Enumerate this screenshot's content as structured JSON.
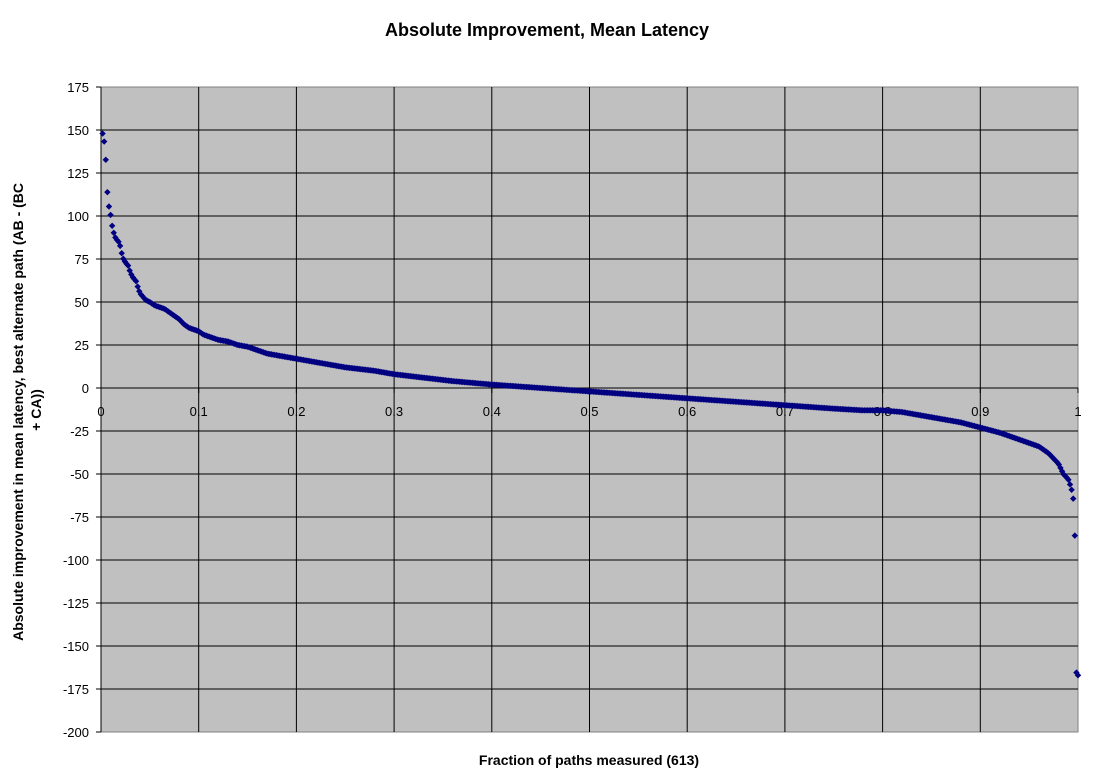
{
  "chart_data": {
    "type": "scatter",
    "title": "Absolute Improvement, Mean Latency",
    "xlabel": "Fraction of paths measured (613)",
    "ylabel_lines": [
      "Absolute improvement in mean latency, best alternate path (AB - (BC",
      "+ CA))"
    ],
    "xlim": [
      0,
      1
    ],
    "ylim": [
      -200,
      175
    ],
    "x_ticks": [
      "0",
      "0.1",
      "0.2",
      "0.3",
      "0.4",
      "0.5",
      "0.6",
      "0.7",
      "0.8",
      "0.9",
      "1"
    ],
    "x_tick_values": [
      0,
      0.1,
      0.2,
      0.3,
      0.4,
      0.5,
      0.6,
      0.7,
      0.8,
      0.9,
      1
    ],
    "y_ticks": [
      "175",
      "150",
      "125",
      "100",
      "75",
      "50",
      "25",
      "0",
      "-25",
      "-50",
      "-75",
      "-100",
      "-125",
      "-150",
      "-175",
      "-200"
    ],
    "y_tick_values": [
      175,
      150,
      125,
      100,
      75,
      50,
      25,
      0,
      -25,
      -50,
      -75,
      -100,
      -125,
      -150,
      -175,
      -200
    ],
    "grid": true,
    "legend": "none",
    "marker": "diamond",
    "colors": {
      "plot_bg": "#c0c0c0",
      "marker": "#000080",
      "grid": "#000000"
    },
    "n_points": 613,
    "curve_points": {
      "x": [
        0.0016,
        0.003,
        0.005,
        0.0065,
        0.008,
        0.01,
        0.012,
        0.015,
        0.018,
        0.02,
        0.022,
        0.025,
        0.028,
        0.03,
        0.033,
        0.036,
        0.038,
        0.04,
        0.043,
        0.046,
        0.05,
        0.055,
        0.06,
        0.065,
        0.07,
        0.075,
        0.08,
        0.085,
        0.09,
        0.095,
        0.1,
        0.105,
        0.11,
        0.12,
        0.13,
        0.14,
        0.15,
        0.16,
        0.17,
        0.18,
        0.19,
        0.2,
        0.22,
        0.25,
        0.28,
        0.3,
        0.33,
        0.36,
        0.4,
        0.45,
        0.5,
        0.55,
        0.6,
        0.65,
        0.7,
        0.75,
        0.78,
        0.8,
        0.82,
        0.84,
        0.86,
        0.88,
        0.9,
        0.92,
        0.94,
        0.96,
        0.97,
        0.975,
        0.98,
        0.985,
        0.99,
        0.993,
        0.995,
        0.9967,
        0.9984
      ],
      "y": [
        148,
        145,
        132,
        114,
        106,
        100,
        92,
        87,
        85,
        82,
        76,
        73,
        71,
        67,
        64,
        62,
        58,
        55,
        53,
        51,
        50,
        48,
        47,
        46,
        44,
        42,
        40,
        37,
        35,
        34,
        33,
        31,
        30,
        28,
        27,
        25,
        24,
        22,
        20,
        19,
        18,
        17,
        15,
        12,
        10,
        8,
        6,
        4,
        2,
        0,
        -2,
        -4,
        -6,
        -8,
        -10,
        -12,
        -13,
        -13,
        -14,
        -16,
        -18,
        -20,
        -23,
        -26,
        -30,
        -34,
        -38,
        -41,
        -44,
        -50,
        -53,
        -58,
        -63,
        -84,
        -167
      ]
    }
  }
}
